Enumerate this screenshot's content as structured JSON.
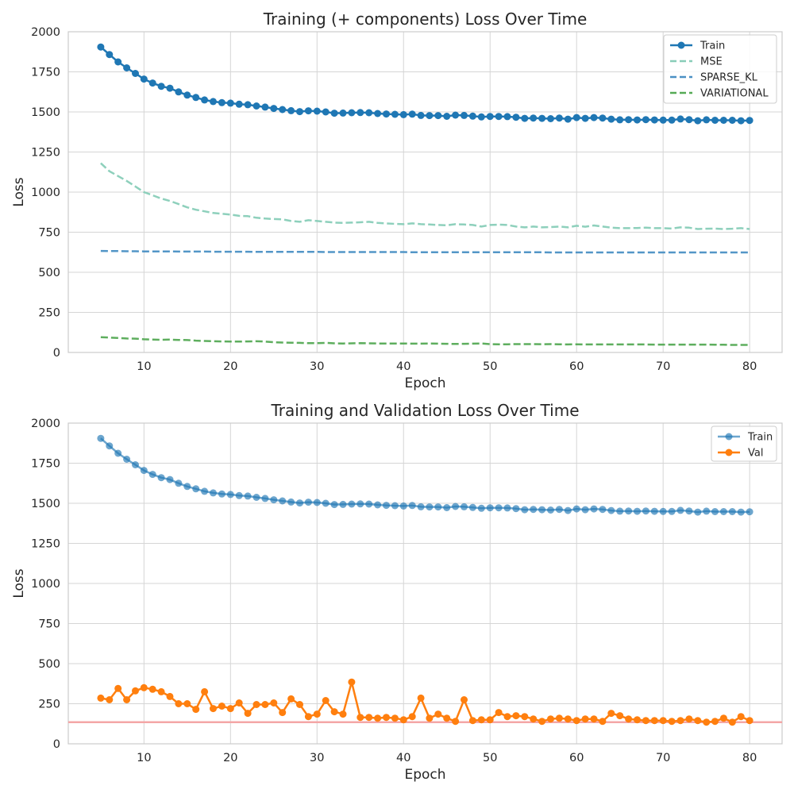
{
  "chart_data": [
    {
      "type": "line",
      "title": "Training (+ components) Loss Over Time",
      "xlabel": "Epoch",
      "ylabel": "Loss",
      "xlim": [
        1.25,
        83.75
      ],
      "ylim": [
        0,
        2000
      ],
      "xticks": [
        10,
        20,
        30,
        40,
        50,
        60,
        70,
        80
      ],
      "yticks": [
        0,
        250,
        500,
        750,
        1000,
        1250,
        1500,
        1750,
        2000
      ],
      "grid": true,
      "legend_position": "top-right",
      "x": [
        5,
        6,
        7,
        8,
        9,
        10,
        11,
        12,
        13,
        14,
        15,
        16,
        17,
        18,
        19,
        20,
        21,
        22,
        23,
        24,
        25,
        26,
        27,
        28,
        29,
        30,
        31,
        32,
        33,
        34,
        35,
        36,
        37,
        38,
        39,
        40,
        41,
        42,
        43,
        44,
        45,
        46,
        47,
        48,
        49,
        50,
        51,
        52,
        53,
        54,
        55,
        56,
        57,
        58,
        59,
        60,
        61,
        62,
        63,
        64,
        65,
        66,
        67,
        68,
        69,
        70,
        71,
        72,
        73,
        74,
        75,
        76,
        77,
        78,
        79,
        80
      ],
      "series": [
        {
          "name": "Train",
          "color": "#1f77b4",
          "style": "solid-marker",
          "values": [
            1905,
            1858,
            1812,
            1775,
            1740,
            1705,
            1680,
            1660,
            1648,
            1625,
            1605,
            1590,
            1575,
            1565,
            1558,
            1555,
            1548,
            1545,
            1537,
            1530,
            1522,
            1515,
            1508,
            1502,
            1507,
            1505,
            1500,
            1492,
            1493,
            1495,
            1496,
            1495,
            1490,
            1487,
            1485,
            1483,
            1486,
            1478,
            1477,
            1477,
            1473,
            1480,
            1478,
            1474,
            1469,
            1472,
            1472,
            1471,
            1467,
            1460,
            1462,
            1460,
            1458,
            1462,
            1455,
            1465,
            1460,
            1465,
            1462,
            1455,
            1451,
            1452,
            1450,
            1452,
            1450,
            1449,
            1449,
            1456,
            1452,
            1445,
            1451,
            1448,
            1448,
            1448,
            1445,
            1447
          ]
        },
        {
          "name": "MSE",
          "color": "#88cdb8",
          "style": "dashed",
          "values": [
            1180,
            1130,
            1100,
            1070,
            1035,
            1000,
            980,
            960,
            945,
            925,
            905,
            890,
            880,
            870,
            865,
            860,
            852,
            850,
            840,
            835,
            832,
            830,
            820,
            815,
            825,
            820,
            815,
            810,
            808,
            810,
            812,
            815,
            808,
            805,
            802,
            800,
            805,
            800,
            798,
            795,
            793,
            800,
            798,
            795,
            785,
            795,
            797,
            795,
            785,
            780,
            785,
            780,
            782,
            785,
            780,
            790,
            784,
            792,
            785,
            778,
            775,
            775,
            776,
            778,
            775,
            775,
            773,
            780,
            778,
            770,
            772,
            773,
            770,
            772,
            775,
            770
          ]
        },
        {
          "name": "SPARSE_KL",
          "color": "#4a90c4",
          "style": "dashed",
          "values": [
            633,
            632,
            632,
            631,
            631,
            630,
            630,
            630,
            630,
            629,
            629,
            629,
            629,
            628,
            628,
            628,
            628,
            628,
            627,
            627,
            627,
            627,
            627,
            627,
            627,
            627,
            626,
            626,
            626,
            626,
            626,
            626,
            626,
            626,
            626,
            626,
            625,
            625,
            625,
            625,
            625,
            625,
            625,
            625,
            625,
            625,
            625,
            625,
            625,
            625,
            625,
            625,
            624,
            624,
            624,
            624,
            624,
            624,
            624,
            624,
            624,
            624,
            624,
            624,
            624,
            624,
            624,
            624,
            624,
            624,
            624,
            624,
            624,
            624,
            624,
            624
          ]
        },
        {
          "name": "VARIATIONAL",
          "color": "#55aa55",
          "style": "dashed",
          "values": [
            95,
            93,
            90,
            87,
            86,
            82,
            80,
            79,
            80,
            78,
            77,
            74,
            72,
            70,
            69,
            68,
            68,
            69,
            70,
            68,
            64,
            62,
            61,
            60,
            58,
            58,
            60,
            57,
            56,
            57,
            58,
            57,
            56,
            56,
            56,
            56,
            55,
            55,
            56,
            55,
            54,
            53,
            54,
            55,
            56,
            52,
            51,
            51,
            52,
            52,
            52,
            51,
            52,
            51,
            50,
            51,
            50,
            50,
            50,
            50,
            50,
            50,
            50,
            50,
            49,
            49,
            49,
            49,
            49,
            49,
            49,
            48,
            48,
            47,
            47,
            47
          ]
        }
      ]
    },
    {
      "type": "line",
      "title": "Training and Validation Loss Over Time",
      "xlabel": "Epoch",
      "ylabel": "Loss",
      "xlim": [
        1.25,
        83.75
      ],
      "ylim": [
        0,
        2000
      ],
      "xticks": [
        10,
        20,
        30,
        40,
        50,
        60,
        70,
        80
      ],
      "yticks": [
        0,
        250,
        500,
        750,
        1000,
        1250,
        1500,
        1750,
        2000
      ],
      "grid": true,
      "legend_position": "top-right",
      "hline": {
        "y": 135,
        "color": "#f4a6a6"
      },
      "x": [
        5,
        6,
        7,
        8,
        9,
        10,
        11,
        12,
        13,
        14,
        15,
        16,
        17,
        18,
        19,
        20,
        21,
        22,
        23,
        24,
        25,
        26,
        27,
        28,
        29,
        30,
        31,
        32,
        33,
        34,
        35,
        36,
        37,
        38,
        39,
        40,
        41,
        42,
        43,
        44,
        45,
        46,
        47,
        48,
        49,
        50,
        51,
        52,
        53,
        54,
        55,
        56,
        57,
        58,
        59,
        60,
        61,
        62,
        63,
        64,
        65,
        66,
        67,
        68,
        69,
        70,
        71,
        72,
        73,
        74,
        75,
        76,
        77,
        78,
        79,
        80
      ],
      "series": [
        {
          "name": "Train",
          "color": "#1f77b4",
          "style": "translucent-marker",
          "values": [
            1905,
            1858,
            1812,
            1775,
            1740,
            1705,
            1680,
            1660,
            1648,
            1625,
            1605,
            1590,
            1575,
            1565,
            1558,
            1555,
            1548,
            1545,
            1537,
            1530,
            1522,
            1515,
            1508,
            1502,
            1507,
            1505,
            1500,
            1492,
            1493,
            1495,
            1496,
            1495,
            1490,
            1487,
            1485,
            1483,
            1486,
            1478,
            1477,
            1477,
            1473,
            1480,
            1478,
            1474,
            1469,
            1472,
            1472,
            1471,
            1467,
            1460,
            1462,
            1460,
            1458,
            1462,
            1455,
            1465,
            1460,
            1465,
            1462,
            1455,
            1451,
            1452,
            1450,
            1452,
            1450,
            1449,
            1449,
            1456,
            1452,
            1445,
            1451,
            1448,
            1448,
            1448,
            1445,
            1447
          ]
        },
        {
          "name": "Val",
          "color": "#ff7f0e",
          "style": "solid-marker",
          "values": [
            285,
            275,
            345,
            275,
            330,
            350,
            340,
            325,
            295,
            250,
            250,
            215,
            325,
            220,
            235,
            220,
            255,
            190,
            245,
            245,
            255,
            195,
            280,
            245,
            170,
            185,
            270,
            200,
            185,
            385,
            165,
            165,
            160,
            165,
            160,
            150,
            170,
            285,
            160,
            185,
            160,
            140,
            275,
            145,
            150,
            150,
            195,
            170,
            175,
            170,
            155,
            140,
            155,
            160,
            155,
            145,
            155,
            155,
            140,
            190,
            175,
            155,
            150,
            145,
            145,
            145,
            140,
            145,
            155,
            145,
            135,
            140,
            160,
            135,
            170,
            145
          ]
        }
      ]
    }
  ]
}
